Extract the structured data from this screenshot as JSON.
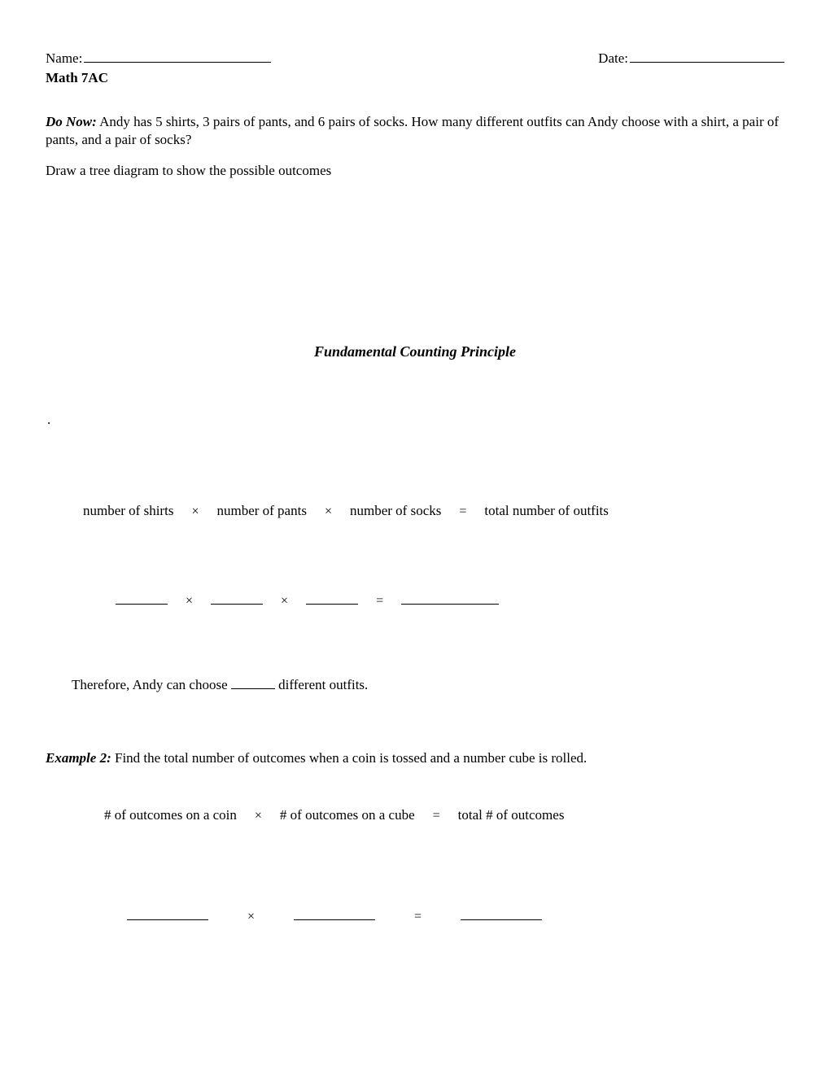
{
  "header": {
    "name_label": "Name:",
    "date_label": "Date:",
    "course": "Math 7AC"
  },
  "do_now": {
    "label": "Do Now:",
    "text": "  Andy has 5 shirts, 3 pairs of pants, and 6 pairs of socks.  How many different outfits can Andy choose with a shirt, a pair of pants, and a pair of socks?",
    "instruction": "Draw a tree diagram to show the possible outcomes"
  },
  "section_title": "Fundamental Counting Principle",
  "dot": ".",
  "eq1": {
    "a": "number of  shirts",
    "op1": "×",
    "b": "number of pants",
    "op2": "×",
    "c": "number of socks",
    "eq": "=",
    "d": "total number of outfits"
  },
  "eq2": {
    "op1": "×",
    "op2": "×",
    "eq": "="
  },
  "therefore": {
    "pre": "Therefore, Andy can choose ",
    "post": " different outfits."
  },
  "example2": {
    "label": "Example 2:",
    "text": "  Find the total number of outcomes when a coin is tossed and a number cube is rolled."
  },
  "eq3": {
    "a": "# of outcomes on a coin",
    "op1": "×",
    "b": "# of outcomes on a cube",
    "eq": "=",
    "c": "total # of outcomes"
  },
  "eq4": {
    "op1": "×",
    "eq": "="
  },
  "colors": {
    "text": "#000000",
    "background": "#ffffff"
  },
  "typography": {
    "font_family": "Times New Roman",
    "body_fontsize_pt": 12,
    "title_fontsize_pt": 13
  }
}
